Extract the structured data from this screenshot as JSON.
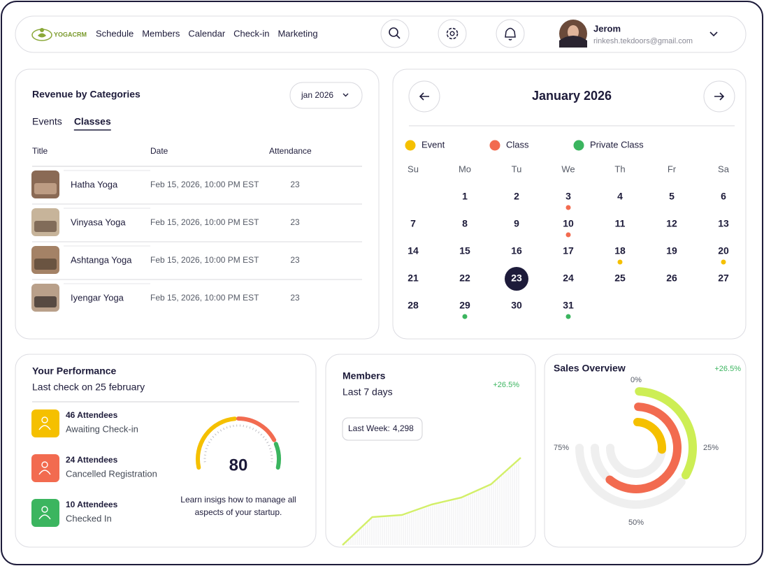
{
  "nav": {
    "brand": "YOGACRM",
    "links": [
      "Schedule",
      "Members",
      "Calendar",
      "Check-in",
      "Marketing"
    ],
    "user": {
      "name": "Jerom",
      "email": "rinkesh.tekdoors@gmail.com"
    }
  },
  "revenue": {
    "title": "Revenue by Categories",
    "period": "jan 2026",
    "tabs": [
      "Events",
      "Classes"
    ],
    "active_tab": 1,
    "columns": [
      "Title",
      "Date",
      "Attendance"
    ],
    "rows": [
      [
        "Hatha Yoga",
        "Feb 15, 2026, 10:00 PM EST",
        23
      ],
      [
        "Vinyasa Yoga",
        "Feb 15, 2026, 10:00 PM EST",
        23
      ],
      [
        "Ashtanga Yoga",
        "Feb 15, 2026, 10:00 PM EST",
        23
      ],
      [
        "Iyengar Yoga",
        "Feb 15, 2026, 10:00 PM EST",
        23
      ]
    ]
  },
  "calendar": {
    "title": "January 2026",
    "legend": [
      {
        "name": "Event",
        "color": "#f5c000"
      },
      {
        "name": "Class",
        "color": "#f26b50"
      },
      {
        "name": "Private Class",
        "color": "#3bb55f"
      }
    ],
    "weekdays": [
      "Su",
      "Mo",
      "Tu",
      "We",
      "Th",
      "Fr",
      "Sa"
    ],
    "weeks": [
      [
        null,
        1,
        2,
        3,
        4,
        5,
        6
      ],
      [
        7,
        8,
        9,
        10,
        11,
        12,
        13
      ],
      [
        14,
        15,
        16,
        17,
        18,
        19,
        20
      ],
      [
        21,
        22,
        23,
        24,
        25,
        26,
        27
      ],
      [
        28,
        29,
        30,
        31,
        null,
        null,
        null
      ]
    ],
    "selected": 23,
    "markers": [
      {
        "day": 3,
        "type": "Class"
      },
      {
        "day": 10,
        "type": "Class"
      },
      {
        "day": 18,
        "type": "Event"
      },
      {
        "day": 20,
        "type": "Event"
      },
      {
        "day": 29,
        "type": "Private Class"
      },
      {
        "day": 31,
        "type": "Private Class"
      }
    ]
  },
  "performance": {
    "title": "Your Performance",
    "subtitle": "Last check on 25 february",
    "items": [
      {
        "count": "46 Attendees",
        "label": "Awaiting Check-in",
        "color": "#f5c000"
      },
      {
        "count": "24 Attendees",
        "label": "Cancelled Registration",
        "color": "#f26b50"
      },
      {
        "count": "10 Attendees",
        "label": "Checked In",
        "color": "#3bb55f"
      }
    ],
    "score": 80,
    "note": "Learn insigs how to manage all aspects of your startup."
  },
  "members": {
    "title": "Members",
    "subtitle": "Last 7 days",
    "change": "+26.5%",
    "tooltip": {
      "label": "Last Week:",
      "value": "4,298"
    },
    "chart_data": {
      "type": "line",
      "values": [
        0,
        40,
        43,
        58,
        68,
        87,
        125
      ],
      "color": "#d3ef6a"
    }
  },
  "sales": {
    "title": "Sales Overview",
    "change": "+26.5%",
    "chart_data": {
      "type": "radial-bar",
      "ticks": [
        {
          "value": 0,
          "label": "0%"
        },
        {
          "value": 25,
          "label": "25%"
        },
        {
          "value": 50,
          "label": "50%"
        },
        {
          "value": 75,
          "label": "75%"
        }
      ],
      "values": [
        33,
        61,
        26
      ],
      "colors": [
        "#cdee55",
        "#f26b50",
        "#f5c000"
      ]
    }
  }
}
